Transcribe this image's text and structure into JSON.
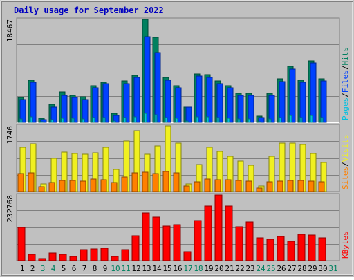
{
  "title": "Daily usage for September 2022",
  "colors": {
    "background": "#C0C0C0",
    "title": "#0000C0",
    "hits": "#00805F",
    "files": "#0040FF",
    "pages": "#00C0E0",
    "visits": "#F0F020",
    "sites": "#FF8000",
    "kbytes": "#FF0000",
    "weekend_day": "#00805F",
    "weekday": "#000000"
  },
  "chart_data": [
    {
      "type": "bar",
      "name": "top",
      "categories": [
        "1",
        "2",
        "3",
        "4",
        "5",
        "6",
        "7",
        "8",
        "9",
        "10",
        "11",
        "12",
        "13",
        "14",
        "15",
        "16",
        "17",
        "18",
        "19",
        "20",
        "21",
        "22",
        "23",
        "24",
        "25",
        "26",
        "27",
        "28",
        "29",
        "30",
        "31"
      ],
      "ymax_label": "18467",
      "ylim": [
        0,
        18467
      ],
      "right_labels": [
        {
          "text": "Pages",
          "color": "#00C0E0"
        },
        {
          "text": "/",
          "color": "#000000"
        },
        {
          "text": "Files",
          "color": "#0040FF"
        },
        {
          "text": "/",
          "color": "#000000"
        },
        {
          "text": "Hits",
          "color": "#00805F"
        }
      ],
      "series": [
        {
          "name": "Hits",
          "values": [
            4400,
            7600,
            700,
            3200,
            5400,
            4800,
            4600,
            6600,
            7200,
            1600,
            7400,
            8400,
            18467,
            15200,
            8000,
            6600,
            2700,
            8700,
            8500,
            7400,
            6600,
            5200,
            5200,
            1100,
            5200,
            7800,
            10000,
            7600,
            11000,
            7800,
            0
          ]
        },
        {
          "name": "Files",
          "values": [
            4100,
            7200,
            500,
            2700,
            4800,
            4400,
            4100,
            6200,
            7000,
            1300,
            7000,
            8000,
            15400,
            12500,
            7500,
            6200,
            2700,
            8300,
            8100,
            7000,
            6200,
            4800,
            4800,
            900,
            4800,
            7300,
            9600,
            7200,
            10600,
            7400,
            0
          ]
        },
        {
          "name": "Pages",
          "values": [
            600,
            1000,
            100,
            500,
            700,
            700,
            600,
            900,
            900,
            200,
            900,
            1000,
            1600,
            1400,
            900,
            800,
            300,
            1000,
            1000,
            900,
            800,
            600,
            600,
            100,
            600,
            900,
            1200,
            900,
            1300,
            900,
            0
          ]
        }
      ]
    },
    {
      "type": "bar",
      "name": "middle",
      "categories": [
        "1",
        "2",
        "3",
        "4",
        "5",
        "6",
        "7",
        "8",
        "9",
        "10",
        "11",
        "12",
        "13",
        "14",
        "15",
        "16",
        "17",
        "18",
        "19",
        "20",
        "21",
        "22",
        "23",
        "24",
        "25",
        "26",
        "27",
        "28",
        "29",
        "30",
        "31"
      ],
      "ymax_label": "1746",
      "ylim": [
        0,
        1746
      ],
      "right_labels": [
        {
          "text": "Sites",
          "color": "#FF8000"
        },
        {
          "text": "/",
          "color": "#000000"
        },
        {
          "text": "Visits",
          "color": "#F0F020"
        }
      ],
      "series": [
        {
          "name": "Visits",
          "values": [
            1180,
            1260,
            210,
            880,
            1040,
            1010,
            990,
            1030,
            1180,
            590,
            1340,
            1610,
            990,
            1210,
            1750,
            1290,
            210,
            720,
            1180,
            1070,
            930,
            810,
            690,
            150,
            930,
            1290,
            1290,
            1250,
            1020,
            780,
            0
          ]
        },
        {
          "name": "Sites",
          "values": [
            470,
            490,
            130,
            230,
            290,
            290,
            270,
            330,
            310,
            230,
            380,
            500,
            520,
            470,
            540,
            500,
            140,
            260,
            330,
            310,
            320,
            290,
            270,
            90,
            260,
            280,
            290,
            300,
            280,
            260,
            0
          ]
        }
      ]
    },
    {
      "type": "bar",
      "name": "bottom",
      "categories": [
        "1",
        "2",
        "3",
        "4",
        "5",
        "6",
        "7",
        "8",
        "9",
        "10",
        "11",
        "12",
        "13",
        "14",
        "15",
        "16",
        "17",
        "18",
        "19",
        "20",
        "21",
        "22",
        "23",
        "24",
        "25",
        "26",
        "27",
        "28",
        "29",
        "30",
        "31"
      ],
      "ymax_label": "232768",
      "ylim": [
        0,
        232768
      ],
      "right_labels": [
        {
          "text": "KBytes",
          "color": "#FF0000"
        }
      ],
      "series": [
        {
          "name": "KBytes",
          "values": [
            118000,
            21000,
            7000,
            26000,
            22000,
            14000,
            38000,
            41000,
            44000,
            14000,
            38000,
            88000,
            168000,
            155000,
            122000,
            128000,
            31000,
            141000,
            193000,
            232768,
            194000,
            120000,
            136000,
            81000,
            77000,
            85000,
            69000,
            92000,
            90000,
            80000,
            0
          ]
        }
      ]
    }
  ],
  "x_labels": [
    {
      "text": "1",
      "weekend": false
    },
    {
      "text": "2",
      "weekend": false
    },
    {
      "text": "3",
      "weekend": true
    },
    {
      "text": "4",
      "weekend": true
    },
    {
      "text": "5",
      "weekend": false
    },
    {
      "text": "6",
      "weekend": false
    },
    {
      "text": "7",
      "weekend": false
    },
    {
      "text": "8",
      "weekend": false
    },
    {
      "text": "9",
      "weekend": false
    },
    {
      "text": "10",
      "weekend": true
    },
    {
      "text": "11",
      "weekend": true
    },
    {
      "text": "12",
      "weekend": false
    },
    {
      "text": "13",
      "weekend": false
    },
    {
      "text": "14",
      "weekend": false
    },
    {
      "text": "15",
      "weekend": false
    },
    {
      "text": "16",
      "weekend": false
    },
    {
      "text": "17",
      "weekend": true
    },
    {
      "text": "18",
      "weekend": true
    },
    {
      "text": "19",
      "weekend": false
    },
    {
      "text": "20",
      "weekend": false
    },
    {
      "text": "21",
      "weekend": false
    },
    {
      "text": "22",
      "weekend": false
    },
    {
      "text": "23",
      "weekend": false
    },
    {
      "text": "24",
      "weekend": true
    },
    {
      "text": "25",
      "weekend": true
    },
    {
      "text": "26",
      "weekend": false
    },
    {
      "text": "27",
      "weekend": false
    },
    {
      "text": "28",
      "weekend": false
    },
    {
      "text": "29",
      "weekend": false
    },
    {
      "text": "30",
      "weekend": false
    },
    {
      "text": "31",
      "weekend": true
    }
  ]
}
